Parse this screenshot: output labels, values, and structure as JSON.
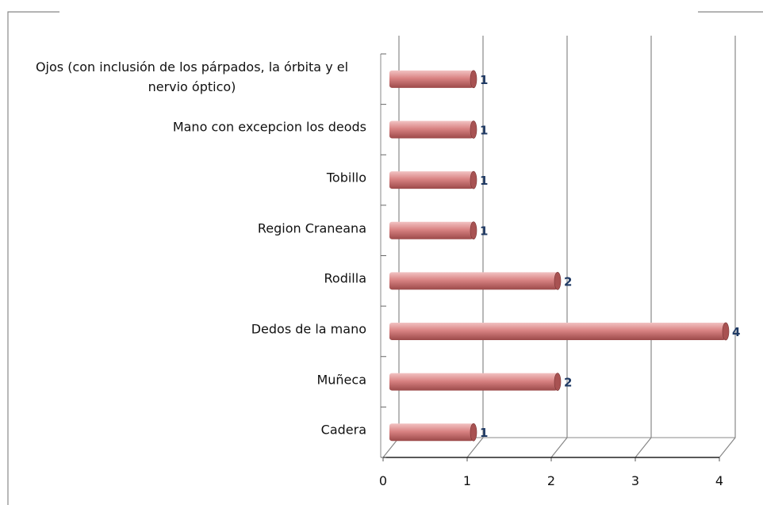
{
  "chart_data": {
    "type": "bar",
    "orientation": "horizontal",
    "categories": [
      "Cadera",
      "Muñeca",
      "Dedos de la mano",
      "Rodilla",
      "Region Craneana",
      "Tobillo",
      "Mano con excepcion los deods",
      "Ojos (con inclusión de los párpados, la órbita y el nervio óptico)"
    ],
    "values": [
      1,
      2,
      4,
      2,
      1,
      1,
      1,
      1
    ],
    "color": "#d98383",
    "xlim": [
      0,
      4
    ],
    "xticks": [
      0,
      1,
      2,
      3,
      4
    ],
    "grid": true
  }
}
